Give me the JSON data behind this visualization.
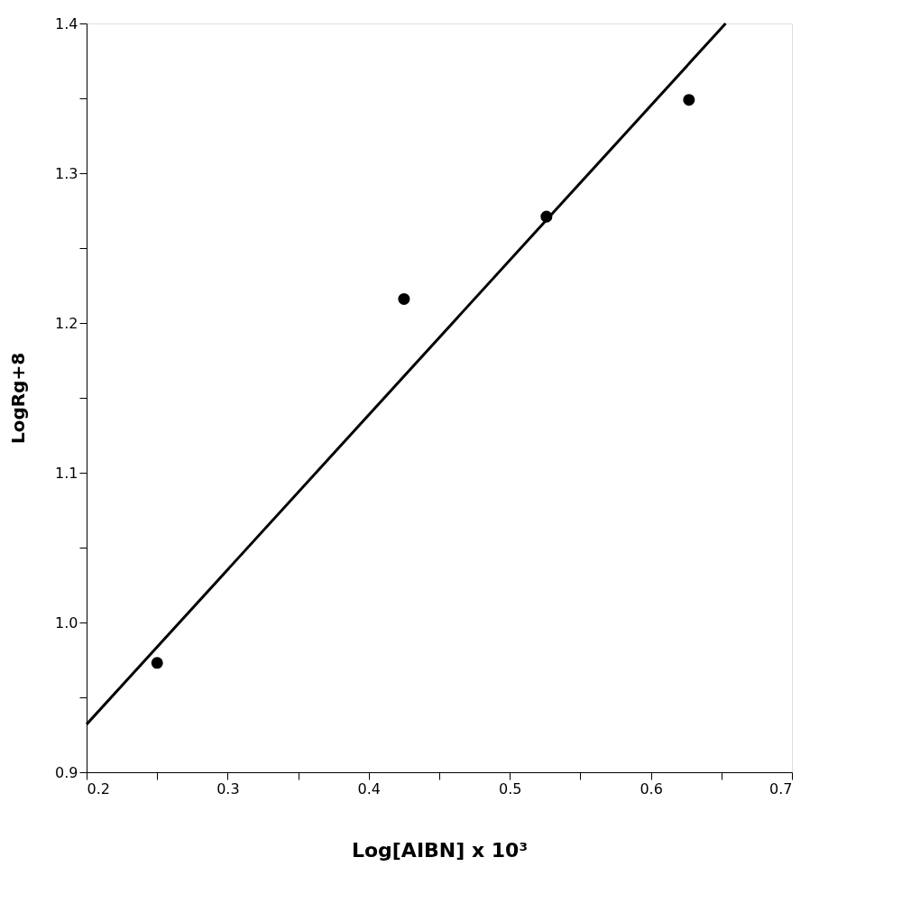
{
  "chart_data": {
    "type": "scatter",
    "xlabel": "Log[AIBN] x 10³",
    "ylabel": "LogRg+8",
    "xlim": [
      0.2,
      0.7
    ],
    "ylim": [
      0.9,
      1.4
    ],
    "xticks": [
      {
        "value": 0.2,
        "label": "0.2"
      },
      {
        "value": 0.25,
        "label": null
      },
      {
        "value": 0.3,
        "label": "0.3"
      },
      {
        "value": 0.35,
        "label": null
      },
      {
        "value": 0.4,
        "label": "0.4"
      },
      {
        "value": 0.45,
        "label": null
      },
      {
        "value": 0.5,
        "label": "0.5"
      },
      {
        "value": 0.55,
        "label": null
      },
      {
        "value": 0.6,
        "label": "0.6"
      },
      {
        "value": 0.65,
        "label": null
      },
      {
        "value": 0.7,
        "label": "0.7"
      }
    ],
    "yticks": [
      {
        "value": 0.9,
        "label": "0.9"
      },
      {
        "value": 0.95,
        "label": null
      },
      {
        "value": 1.0,
        "label": "1.0"
      },
      {
        "value": 1.05,
        "label": null
      },
      {
        "value": 1.1,
        "label": "1.1"
      },
      {
        "value": 1.15,
        "label": null
      },
      {
        "value": 1.2,
        "label": "1.2"
      },
      {
        "value": 1.25,
        "label": null
      },
      {
        "value": 1.3,
        "label": "1.3"
      },
      {
        "value": 1.35,
        "label": null
      },
      {
        "value": 1.4,
        "label": "1.4"
      }
    ],
    "grid": false,
    "series": [
      {
        "color": "#000000",
        "marker": "circle",
        "x": [
          0.25,
          0.425,
          0.526,
          0.627
        ],
        "values": [
          0.973,
          1.216,
          1.271,
          1.349
        ]
      },
      {
        "type": "line",
        "color": "#000000",
        "marker": "none",
        "line_style": "solid",
        "x": [
          0.2,
          0.653
        ],
        "values": [
          0.932,
          1.4
        ]
      }
    ]
  }
}
